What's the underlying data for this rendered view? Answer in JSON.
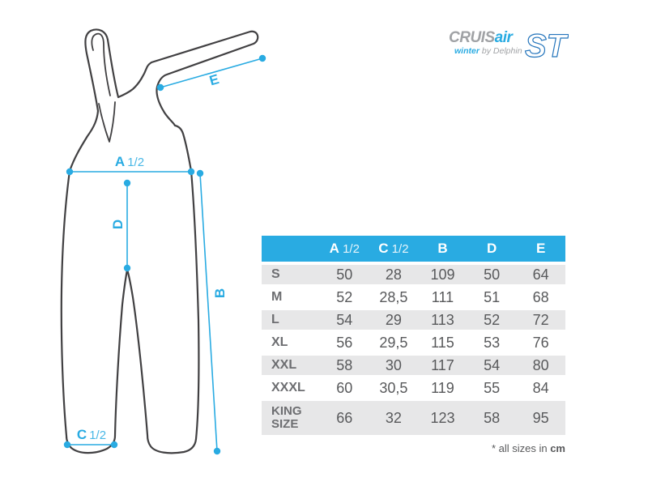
{
  "colors": {
    "accent": "#29abe2",
    "outline": "#414042",
    "text": "#58595b",
    "label": "#6d6e71",
    "row_alt": "#e7e7e8",
    "logo_gray": "#a0a2a5",
    "logo_blue": "#2575bc"
  },
  "logo": {
    "brand_primary": "CRUIS",
    "brand_accent": "air",
    "brand_suffix": "ST",
    "sub_accent": "winter",
    "sub_rest": "by Delphin"
  },
  "diagram": {
    "label_a": {
      "letter": "A",
      "fraction": "1/2"
    },
    "label_c": {
      "letter": "C",
      "fraction": "1/2"
    },
    "label_b": "B",
    "label_d": "D",
    "label_e": "E"
  },
  "table": {
    "columns": [
      {
        "letter": "A",
        "fraction": "1/2"
      },
      {
        "letter": "C",
        "fraction": "1/2"
      },
      {
        "letter": "B",
        "fraction": ""
      },
      {
        "letter": "D",
        "fraction": ""
      },
      {
        "letter": "E",
        "fraction": ""
      }
    ],
    "rows": [
      {
        "size": "S",
        "values": [
          "50",
          "28",
          "109",
          "50",
          "64"
        ]
      },
      {
        "size": "M",
        "values": [
          "52",
          "28,5",
          "111",
          "51",
          "68"
        ]
      },
      {
        "size": "L",
        "values": [
          "54",
          "29",
          "113",
          "52",
          "72"
        ]
      },
      {
        "size": "XL",
        "values": [
          "56",
          "29,5",
          "115",
          "53",
          "76"
        ]
      },
      {
        "size": "XXL",
        "values": [
          "58",
          "30",
          "117",
          "54",
          "80"
        ]
      },
      {
        "size": "XXXL",
        "values": [
          "60",
          "30,5",
          "119",
          "55",
          "84"
        ]
      },
      {
        "size": "KING SIZE",
        "size_lines": [
          "KING",
          "SIZE"
        ],
        "values": [
          "66",
          "32",
          "123",
          "58",
          "95"
        ]
      }
    ]
  },
  "footnote": {
    "prefix": "* all sizes in ",
    "unit": "cm"
  }
}
